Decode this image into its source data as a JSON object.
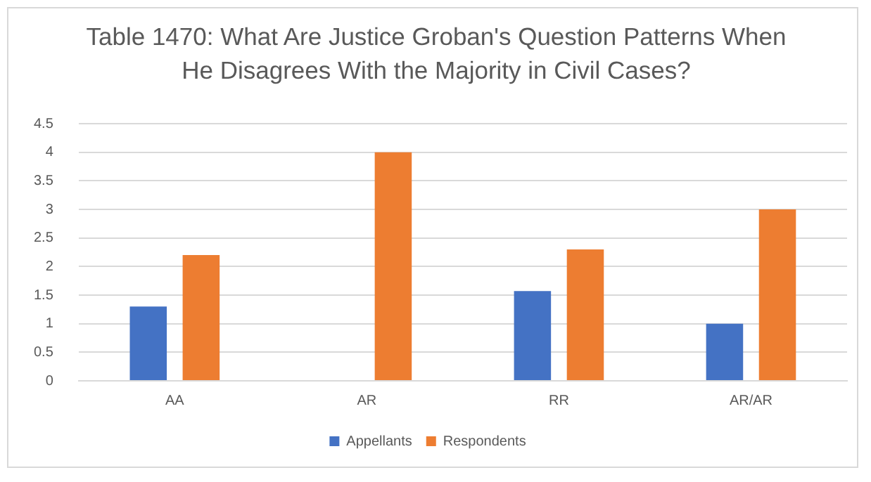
{
  "chart_data": {
    "type": "bar",
    "title": "Table 1470: What Are Justice Groban's Question Patterns When He Disagrees With the Majority in Civil Cases?",
    "categories": [
      "AA",
      "AR",
      "RR",
      "AR/AR"
    ],
    "series": [
      {
        "name": "Appellants",
        "color": "#4472c4",
        "values": [
          1.3,
          0,
          1.57,
          1.0
        ]
      },
      {
        "name": "Respondents",
        "color": "#ed7d31",
        "values": [
          2.2,
          4.0,
          2.3,
          3.0
        ]
      }
    ],
    "ylim": [
      0,
      4.5
    ],
    "yticks": [
      0,
      0.5,
      1,
      1.5,
      2,
      2.5,
      3,
      3.5,
      4,
      4.5
    ],
    "grid": "y",
    "legend": "bottom"
  }
}
